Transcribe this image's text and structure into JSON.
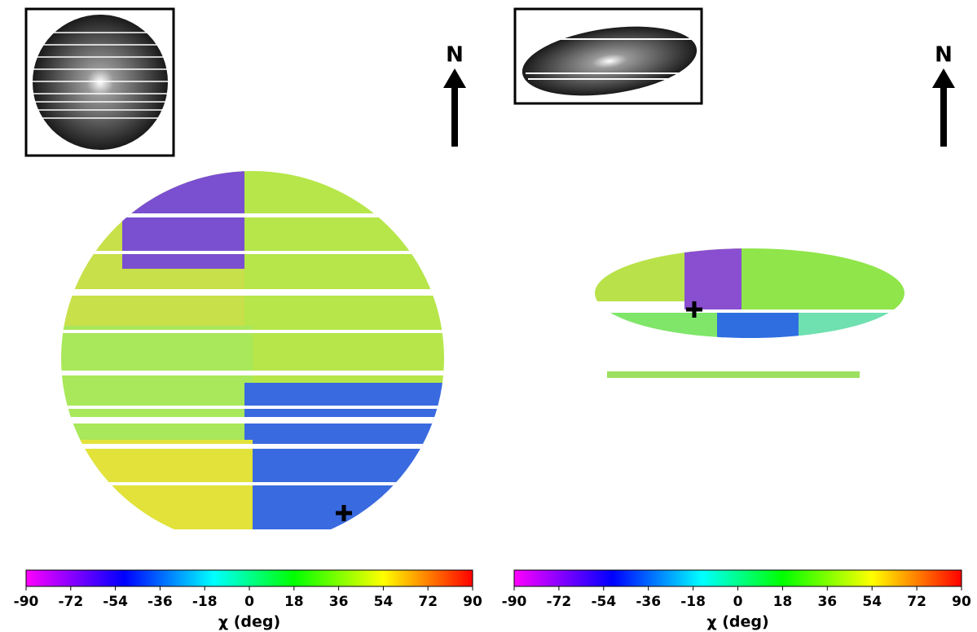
{
  "panels": [
    {
      "north_label": "N",
      "colorbar": {
        "lim": [
          -90,
          90
        ],
        "ticks": [
          -90,
          -72,
          -54,
          -36,
          -18,
          0,
          18,
          36,
          54,
          72,
          90
        ],
        "label": "χ (deg)"
      }
    },
    {
      "north_label": "N",
      "colorbar": {
        "lim": [
          -90,
          90
        ],
        "ticks": [
          -90,
          -72,
          -54,
          -36,
          -18,
          0,
          18,
          36,
          54,
          72,
          90
        ],
        "label": "χ (deg)"
      }
    }
  ]
}
